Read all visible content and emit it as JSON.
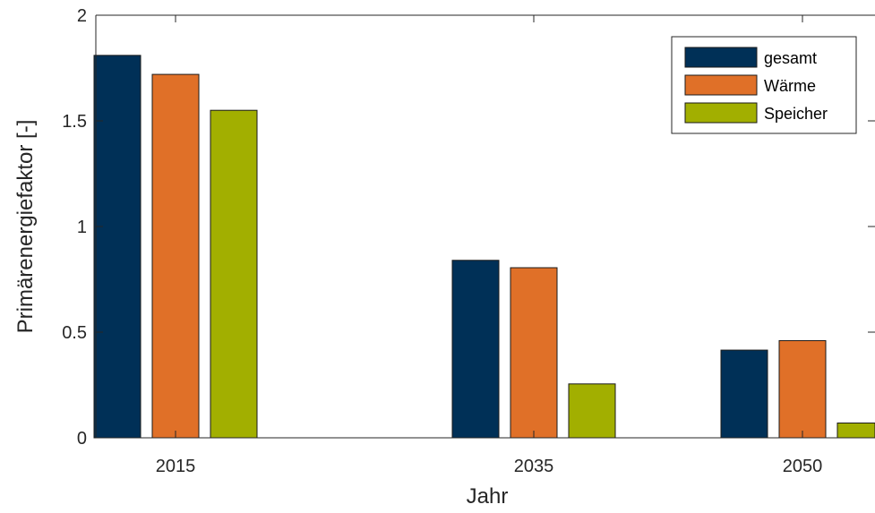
{
  "chart_data": {
    "type": "bar",
    "title": "",
    "xlabel": "Jahr",
    "ylabel": "Primärenergiefaktor [-]",
    "categories": [
      "2015",
      "2035",
      "2050"
    ],
    "series": [
      {
        "name": "gesamt",
        "color": "#003057",
        "values": [
          1.81,
          0.84,
          0.415
        ]
      },
      {
        "name": "Wärme",
        "color": "#e07028",
        "values": [
          1.72,
          0.805,
          0.46
        ]
      },
      {
        "name": "Speicher",
        "color": "#a2af00",
        "values": [
          1.55,
          0.255,
          0.07
        ]
      }
    ],
    "ylim": [
      0,
      2
    ],
    "yticks": [
      0,
      0.5,
      1,
      1.5,
      2
    ],
    "ytick_labels": [
      "0",
      "0.5",
      "1",
      "1.5",
      "2"
    ],
    "grid": false,
    "legend_position": "top-right"
  }
}
